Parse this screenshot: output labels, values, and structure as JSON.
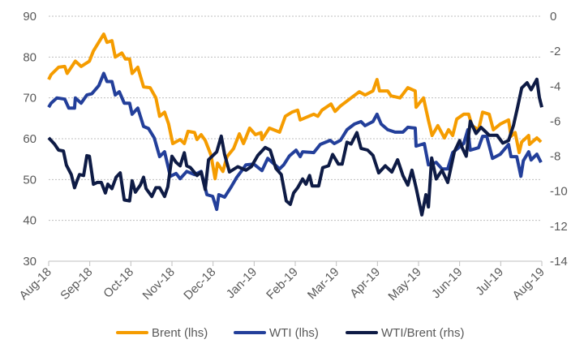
{
  "chart_data": {
    "type": "line",
    "title": "",
    "x_unit": "months since Aug-18",
    "x_ticks": [
      "Aug-18",
      "Sep-18",
      "Oct-18",
      "Nov-18",
      "Dec-18",
      "Jan-19",
      "Feb-19",
      "Mar-19",
      "Apr-19",
      "May-19",
      "Jun-19",
      "Jul-19",
      "Aug-19"
    ],
    "y_left": {
      "range": [
        30,
        90
      ],
      "ticks": [
        "30",
        "40",
        "50",
        "60",
        "70",
        "80",
        "90"
      ]
    },
    "y_right": {
      "range": [
        -14,
        0
      ],
      "ticks": [
        "-14",
        "-12",
        "-10",
        "-8",
        "-6",
        "-4",
        "-2",
        "0"
      ]
    },
    "grid": true,
    "legend_position": "bottom",
    "series": [
      {
        "name": "Brent (lhs)",
        "axis": "left",
        "color": "#F59C00",
        "points": [
          [
            0,
            74.5
          ],
          [
            0.06,
            75.7
          ],
          [
            0.24,
            77.5
          ],
          [
            0.39,
            77.7
          ],
          [
            0.45,
            76
          ],
          [
            0.65,
            79
          ],
          [
            0.79,
            77.7
          ],
          [
            0.99,
            79
          ],
          [
            1.09,
            81.5
          ],
          [
            1.34,
            85.6
          ],
          [
            1.42,
            83.6
          ],
          [
            1.54,
            84
          ],
          [
            1.62,
            80
          ],
          [
            1.78,
            81
          ],
          [
            1.87,
            79.5
          ],
          [
            1.97,
            79.5
          ],
          [
            2.03,
            76
          ],
          [
            2.17,
            77.5
          ],
          [
            2.31,
            72.7
          ],
          [
            2.47,
            72.5
          ],
          [
            2.61,
            70
          ],
          [
            2.7,
            65.5
          ],
          [
            2.82,
            66.5
          ],
          [
            2.92,
            63.6
          ],
          [
            3.02,
            58.8
          ],
          [
            3.2,
            59.8
          ],
          [
            3.3,
            58.8
          ],
          [
            3.39,
            61.8
          ],
          [
            3.55,
            61.5
          ],
          [
            3.61,
            59.8
          ],
          [
            3.71,
            61
          ],
          [
            3.81,
            59.6
          ],
          [
            3.95,
            56
          ],
          [
            4.05,
            50.2
          ],
          [
            4.11,
            54
          ],
          [
            4.24,
            52
          ],
          [
            4.34,
            55.6
          ],
          [
            4.5,
            57.6
          ],
          [
            4.64,
            61.2
          ],
          [
            4.74,
            58.8
          ],
          [
            4.89,
            62.6
          ],
          [
            5.03,
            61
          ],
          [
            5.17,
            61.5
          ],
          [
            5.19,
            59.8
          ],
          [
            5.37,
            62.6
          ],
          [
            5.62,
            61.6
          ],
          [
            5.76,
            65.5
          ],
          [
            5.92,
            66.5
          ],
          [
            6.06,
            67
          ],
          [
            6.12,
            64.6
          ],
          [
            6.26,
            65.2
          ],
          [
            6.45,
            66
          ],
          [
            6.55,
            65.5
          ],
          [
            6.65,
            67
          ],
          [
            6.87,
            68.5
          ],
          [
            6.97,
            66.7
          ],
          [
            7.1,
            68
          ],
          [
            7.36,
            70
          ],
          [
            7.56,
            71.5
          ],
          [
            7.7,
            70.7
          ],
          [
            7.89,
            71.7
          ],
          [
            7.99,
            74.5
          ],
          [
            8.05,
            71.7
          ],
          [
            8.25,
            71.7
          ],
          [
            8.33,
            70.5
          ],
          [
            8.55,
            70
          ],
          [
            8.74,
            72.5
          ],
          [
            8.92,
            71.7
          ],
          [
            8.94,
            67.7
          ],
          [
            9.12,
            70
          ],
          [
            9.24,
            64.5
          ],
          [
            9.33,
            60.8
          ],
          [
            9.47,
            63.2
          ],
          [
            9.63,
            60.2
          ],
          [
            9.73,
            62.2
          ],
          [
            9.83,
            60.8
          ],
          [
            9.93,
            64.8
          ],
          [
            10.1,
            66
          ],
          [
            10.22,
            66
          ],
          [
            10.3,
            63.2
          ],
          [
            10.46,
            62.2
          ],
          [
            10.56,
            66.5
          ],
          [
            10.72,
            66
          ],
          [
            10.82,
            62.2
          ],
          [
            10.99,
            63.6
          ],
          [
            11.19,
            64.6
          ],
          [
            11.25,
            60.6
          ],
          [
            11.35,
            61.5
          ],
          [
            11.45,
            56.6
          ],
          [
            11.51,
            59.2
          ],
          [
            11.68,
            60.8
          ],
          [
            11.7,
            58.6
          ],
          [
            11.88,
            60.2
          ],
          [
            11.98,
            59.2
          ]
        ]
      },
      {
        "name": "WTI (lhs)",
        "axis": "left",
        "color": "#233F9A",
        "points": [
          [
            0,
            67.7
          ],
          [
            0.06,
            68.7
          ],
          [
            0.2,
            70
          ],
          [
            0.39,
            69.7
          ],
          [
            0.49,
            67.5
          ],
          [
            0.63,
            67.5
          ],
          [
            0.65,
            70
          ],
          [
            0.79,
            68.7
          ],
          [
            0.93,
            70.7
          ],
          [
            1.05,
            71
          ],
          [
            1.22,
            73
          ],
          [
            1.34,
            76
          ],
          [
            1.42,
            74
          ],
          [
            1.54,
            74
          ],
          [
            1.62,
            70.7
          ],
          [
            1.72,
            71.5
          ],
          [
            1.84,
            68.7
          ],
          [
            1.97,
            68.7
          ],
          [
            2.03,
            66
          ],
          [
            2.17,
            67.5
          ],
          [
            2.31,
            63
          ],
          [
            2.43,
            62.5
          ],
          [
            2.57,
            60.2
          ],
          [
            2.7,
            55.6
          ],
          [
            2.82,
            56.8
          ],
          [
            2.96,
            50.8
          ],
          [
            3.1,
            51.5
          ],
          [
            3.2,
            50.2
          ],
          [
            3.36,
            52
          ],
          [
            3.55,
            51.2
          ],
          [
            3.71,
            52
          ],
          [
            3.85,
            46.3
          ],
          [
            3.99,
            45.9
          ],
          [
            4.09,
            42.7
          ],
          [
            4.14,
            46.3
          ],
          [
            4.28,
            45.7
          ],
          [
            4.44,
            48.2
          ],
          [
            4.58,
            50.6
          ],
          [
            4.7,
            52.2
          ],
          [
            4.8,
            53.6
          ],
          [
            4.99,
            53.8
          ],
          [
            5.19,
            52.2
          ],
          [
            5.33,
            55.2
          ],
          [
            5.62,
            52.6
          ],
          [
            5.72,
            53.6
          ],
          [
            5.86,
            55.8
          ],
          [
            6.02,
            57.2
          ],
          [
            6.12,
            55.6
          ],
          [
            6.18,
            56.8
          ],
          [
            6.45,
            56.6
          ],
          [
            6.61,
            58.6
          ],
          [
            6.85,
            59.6
          ],
          [
            6.95,
            58.8
          ],
          [
            7.1,
            59.6
          ],
          [
            7.26,
            62.2
          ],
          [
            7.44,
            63.6
          ],
          [
            7.6,
            64.2
          ],
          [
            7.7,
            63.2
          ],
          [
            7.89,
            64.2
          ],
          [
            7.99,
            66
          ],
          [
            8.09,
            63.6
          ],
          [
            8.25,
            62.2
          ],
          [
            8.43,
            61.6
          ],
          [
            8.62,
            61.6
          ],
          [
            8.74,
            62.8
          ],
          [
            8.92,
            62.6
          ],
          [
            8.94,
            58.2
          ],
          [
            9.14,
            58.8
          ],
          [
            9.24,
            53.6
          ],
          [
            9.43,
            54.2
          ],
          [
            9.57,
            52.6
          ],
          [
            9.71,
            52.6
          ],
          [
            9.83,
            56.6
          ],
          [
            10.1,
            58.8
          ],
          [
            10.2,
            62.2
          ],
          [
            10.26,
            57.2
          ],
          [
            10.46,
            57.8
          ],
          [
            10.56,
            60.6
          ],
          [
            10.66,
            60.6
          ],
          [
            10.8,
            55.2
          ],
          [
            10.99,
            56.2
          ],
          [
            11.19,
            58.6
          ],
          [
            11.25,
            55.6
          ],
          [
            11.39,
            55.6
          ],
          [
            11.49,
            50.8
          ],
          [
            11.55,
            54.6
          ],
          [
            11.68,
            56.8
          ],
          [
            11.74,
            54.8
          ],
          [
            11.88,
            56.2
          ],
          [
            11.98,
            54.2
          ]
        ]
      },
      {
        "name": "WTI/Brent (rhs)",
        "axis": "right",
        "color": "#0E1B45",
        "points": [
          [
            0,
            -6.95
          ],
          [
            0.14,
            -7.3
          ],
          [
            0.24,
            -7.65
          ],
          [
            0.36,
            -7.7
          ],
          [
            0.43,
            -8.5
          ],
          [
            0.55,
            -9.05
          ],
          [
            0.63,
            -9.8
          ],
          [
            0.69,
            -9.4
          ],
          [
            0.75,
            -9.05
          ],
          [
            0.85,
            -9.1
          ],
          [
            0.93,
            -7.97
          ],
          [
            0.99,
            -8.0
          ],
          [
            1.09,
            -9.6
          ],
          [
            1.18,
            -9.5
          ],
          [
            1.28,
            -9.5
          ],
          [
            1.38,
            -10.1
          ],
          [
            1.44,
            -9.6
          ],
          [
            1.54,
            -9.85
          ],
          [
            1.64,
            -9.2
          ],
          [
            1.74,
            -8.95
          ],
          [
            1.84,
            -10.5
          ],
          [
            1.97,
            -10.55
          ],
          [
            2.03,
            -9.4
          ],
          [
            2.11,
            -10.05
          ],
          [
            2.23,
            -9.65
          ],
          [
            2.31,
            -9.2
          ],
          [
            2.37,
            -9.85
          ],
          [
            2.51,
            -10.3
          ],
          [
            2.61,
            -9.8
          ],
          [
            2.7,
            -9.8
          ],
          [
            2.82,
            -10.3
          ],
          [
            2.9,
            -9.75
          ],
          [
            3.0,
            -8.0
          ],
          [
            3.1,
            -8.35
          ],
          [
            3.2,
            -8.55
          ],
          [
            3.3,
            -7.8
          ],
          [
            3.36,
            -8.55
          ],
          [
            3.45,
            -8.65
          ],
          [
            3.61,
            -9.1
          ],
          [
            3.71,
            -8.9
          ],
          [
            3.81,
            -9.9
          ],
          [
            3.89,
            -8.2
          ],
          [
            4.09,
            -7.75
          ],
          [
            4.2,
            -6.85
          ],
          [
            4.28,
            -7.9
          ],
          [
            4.4,
            -8.9
          ],
          [
            4.6,
            -8.6
          ],
          [
            4.8,
            -8.8
          ],
          [
            4.93,
            -8.6
          ],
          [
            5.09,
            -7.95
          ],
          [
            5.27,
            -7.5
          ],
          [
            5.39,
            -7.65
          ],
          [
            5.53,
            -8.7
          ],
          [
            5.66,
            -9.05
          ],
          [
            5.78,
            -10.55
          ],
          [
            5.88,
            -10.75
          ],
          [
            5.96,
            -10.1
          ],
          [
            6.06,
            -9.8
          ],
          [
            6.18,
            -9.3
          ],
          [
            6.26,
            -9.6
          ],
          [
            6.35,
            -9.1
          ],
          [
            6.41,
            -9.7
          ],
          [
            6.57,
            -9.7
          ],
          [
            6.67,
            -8.65
          ],
          [
            6.81,
            -8.55
          ],
          [
            6.91,
            -7.9
          ],
          [
            7.05,
            -8.45
          ],
          [
            7.14,
            -8.45
          ],
          [
            7.26,
            -7.2
          ],
          [
            7.36,
            -7.3
          ],
          [
            7.5,
            -6.65
          ],
          [
            7.6,
            -7.55
          ],
          [
            7.76,
            -7.65
          ],
          [
            7.89,
            -7.95
          ],
          [
            8.03,
            -8.95
          ],
          [
            8.19,
            -8.55
          ],
          [
            8.35,
            -8.9
          ],
          [
            8.49,
            -8.2
          ],
          [
            8.62,
            -9.1
          ],
          [
            8.74,
            -9.65
          ],
          [
            8.84,
            -8.8
          ],
          [
            8.94,
            -9.8
          ],
          [
            9.08,
            -11.35
          ],
          [
            9.18,
            -10.2
          ],
          [
            9.24,
            -10.9
          ],
          [
            9.32,
            -8.1
          ],
          [
            9.43,
            -9.3
          ],
          [
            9.57,
            -8.8
          ],
          [
            9.71,
            -9.5
          ],
          [
            9.87,
            -7.75
          ],
          [
            10.0,
            -7.1
          ],
          [
            10.07,
            -7.55
          ],
          [
            10.16,
            -8.0
          ],
          [
            10.26,
            -6.0
          ],
          [
            10.4,
            -6.7
          ],
          [
            10.52,
            -6.35
          ],
          [
            10.72,
            -6.8
          ],
          [
            10.91,
            -6.8
          ],
          [
            11.05,
            -7.25
          ],
          [
            11.19,
            -7.1
          ],
          [
            11.31,
            -6.25
          ],
          [
            11.41,
            -5.2
          ],
          [
            11.51,
            -4.1
          ],
          [
            11.64,
            -3.8
          ],
          [
            11.74,
            -4.2
          ],
          [
            11.88,
            -3.6
          ],
          [
            11.94,
            -4.65
          ],
          [
            12.0,
            -5.2
          ]
        ]
      }
    ]
  }
}
